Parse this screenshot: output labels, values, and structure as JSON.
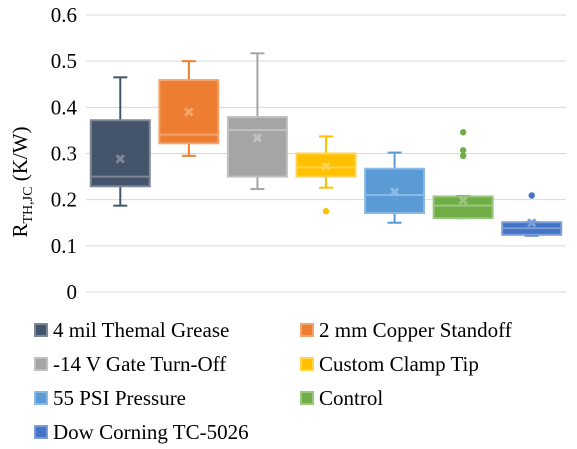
{
  "chart_data": {
    "type": "boxplot",
    "title": "",
    "xlabel": "",
    "ylabel": {
      "main": "R",
      "sub": "TH,JC",
      "unit": " (K/W)"
    },
    "ylim": [
      0,
      0.6
    ],
    "yticks": [
      "0",
      "0.1",
      "0.2",
      "0.3",
      "0.4",
      "0.5",
      "0.6"
    ],
    "grid": "horizontal",
    "legend_position": "bottom",
    "series": [
      {
        "name": "4 mil Themal Grease",
        "color": "#44546a",
        "min": 0.187,
        "q1": 0.229,
        "median": 0.25,
        "q3": 0.372,
        "max": 0.465,
        "mean": 0.288,
        "outliers": []
      },
      {
        "name": "2 mm Copper Standoff",
        "color": "#ed7d31",
        "min": 0.295,
        "q1": 0.322,
        "median": 0.341,
        "q3": 0.459,
        "max": 0.5,
        "mean": 0.39,
        "outliers": []
      },
      {
        "name": "-14 V Gate Turn-Off",
        "color": "#a5a5a5",
        "min": 0.223,
        "q1": 0.25,
        "median": 0.351,
        "q3": 0.379,
        "max": 0.517,
        "mean": 0.334,
        "outliers": []
      },
      {
        "name": "Custom Clamp Tip",
        "color": "#ffc000",
        "min": 0.226,
        "q1": 0.25,
        "median": 0.27,
        "q3": 0.3,
        "max": 0.337,
        "mean": 0.272,
        "outliers": [
          0.175
        ]
      },
      {
        "name": "55 PSI Pressure",
        "color": "#5b9bd5",
        "min": 0.15,
        "q1": 0.171,
        "median": 0.21,
        "q3": 0.267,
        "max": 0.302,
        "mean": 0.217,
        "outliers": []
      },
      {
        "name": "Control",
        "color": "#70ad47",
        "min": 0.16,
        "q1": 0.16,
        "median": 0.187,
        "q3": 0.207,
        "max": 0.208,
        "mean": 0.198,
        "outliers": [
          0.295,
          0.307,
          0.346
        ]
      },
      {
        "name": "Dow Corning TC-5026",
        "color": "#4472c4",
        "min": 0.122,
        "q1": 0.124,
        "median": 0.138,
        "q3": 0.151,
        "max": 0.151,
        "mean": 0.15,
        "outliers": [
          0.209
        ]
      }
    ]
  }
}
